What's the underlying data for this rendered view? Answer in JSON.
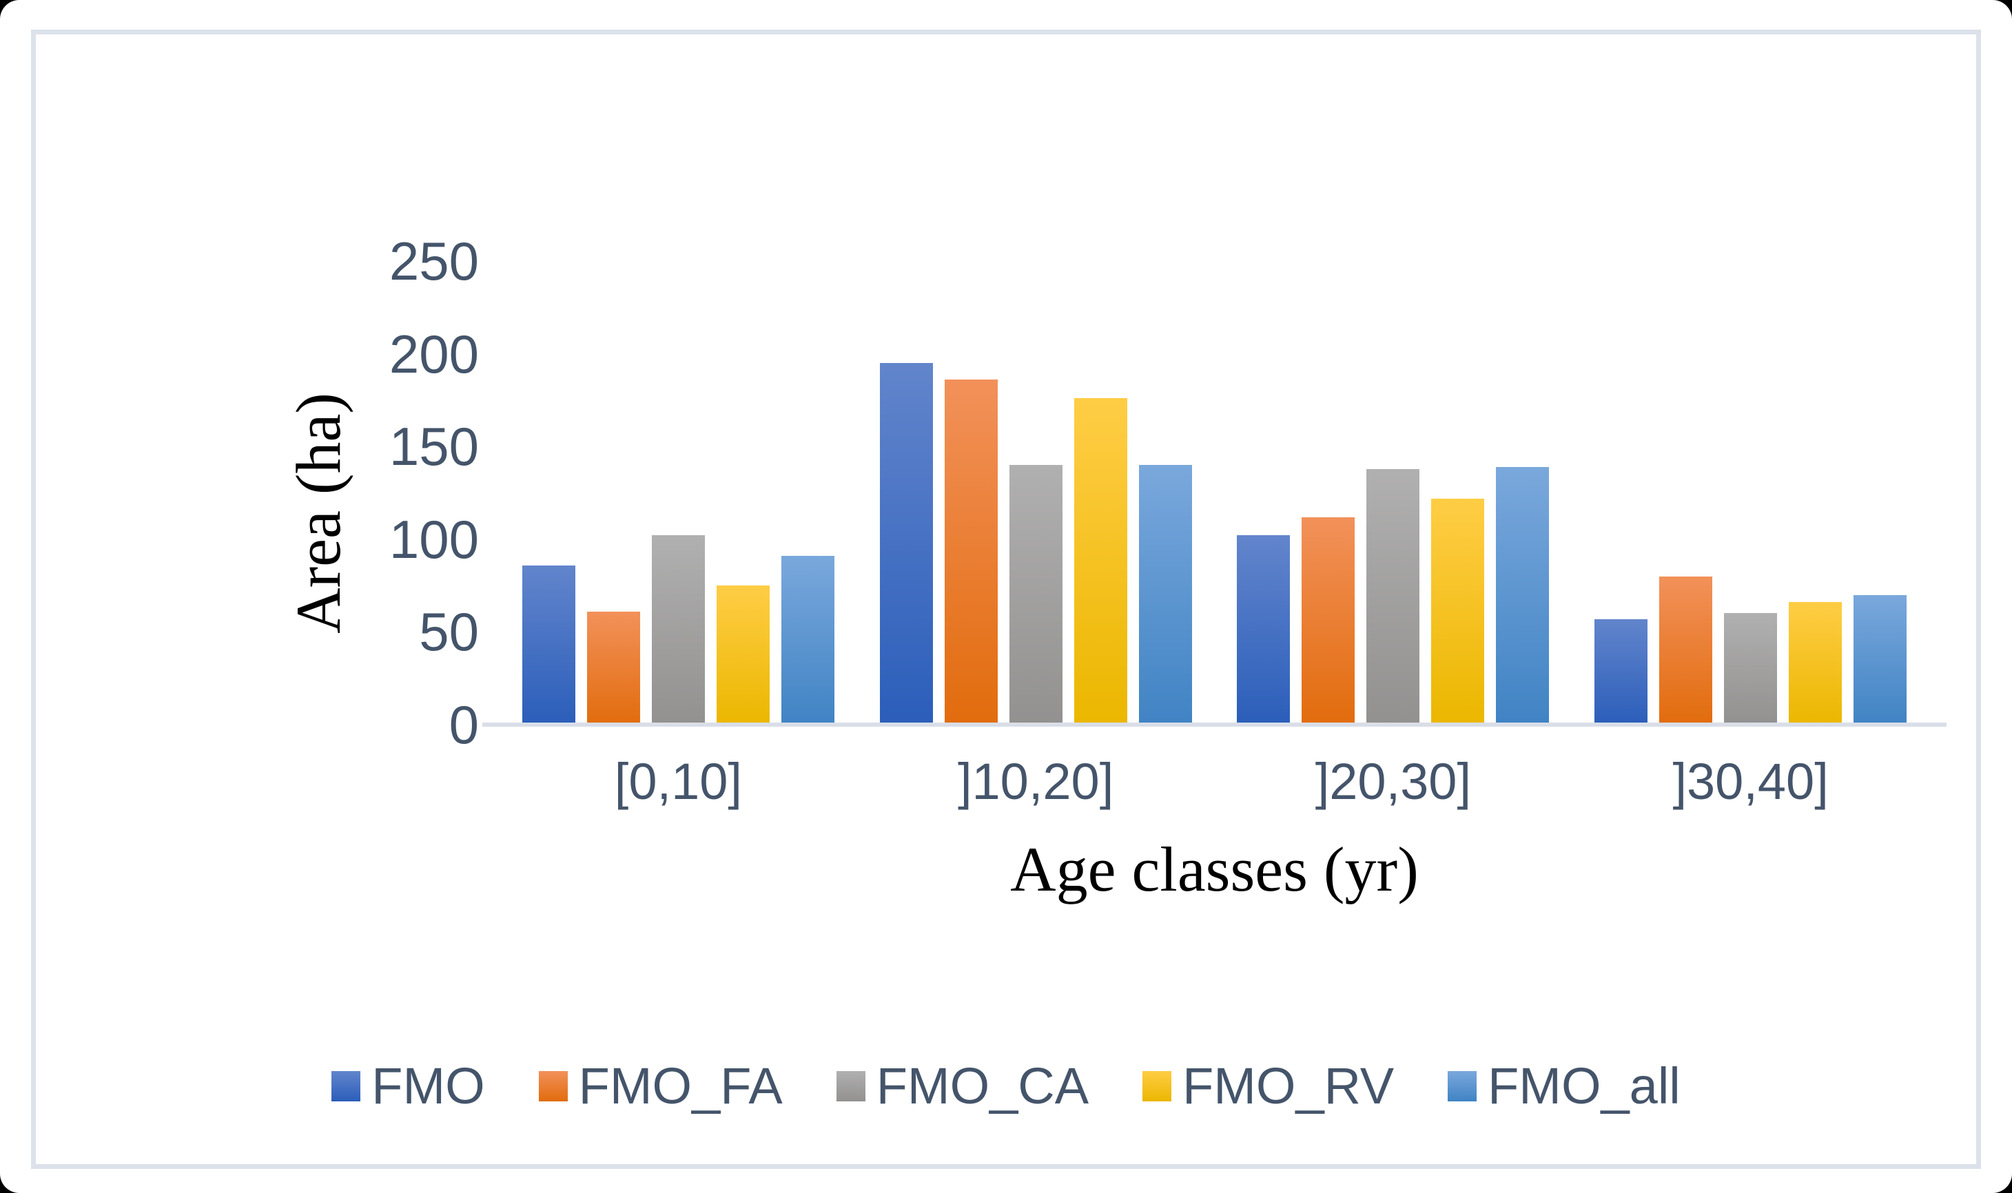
{
  "chart_data": {
    "type": "bar",
    "title": "",
    "categories": [
      "[0,10]",
      "]10,20]",
      "]20,30]",
      "]30,40]"
    ],
    "series": [
      {
        "name": "FMO",
        "color": "#4472C4",
        "values": [
          86,
          195,
          102,
          57
        ]
      },
      {
        "name": "FMO_FA",
        "color": "#ED7D31",
        "values": [
          61,
          186,
          112,
          80
        ]
      },
      {
        "name": "FMO_CA",
        "color": "#A5A5A5",
        "values": [
          102,
          140,
          138,
          60
        ]
      },
      {
        "name": "FMO_RV",
        "color": "#FFC000",
        "values": [
          75,
          176,
          122,
          66
        ]
      },
      {
        "name": "FMO_all",
        "color": "#5B9BD5",
        "values": [
          91,
          140,
          139,
          70
        ]
      }
    ],
    "xlabel": "Age classes (yr)",
    "ylabel": "Area (ha)",
    "ylim": [
      0,
      250
    ],
    "yticks": [
      250,
      200,
      150,
      100,
      50,
      0
    ],
    "grid": false,
    "legend_position": "bottom"
  },
  "style_colors": {
    "label_text": "#44546A",
    "axis_title_text": "#000000",
    "axis_line": "#D9DEE8",
    "card_border": "#DCE1EA",
    "background": "#FFFFFF"
  }
}
